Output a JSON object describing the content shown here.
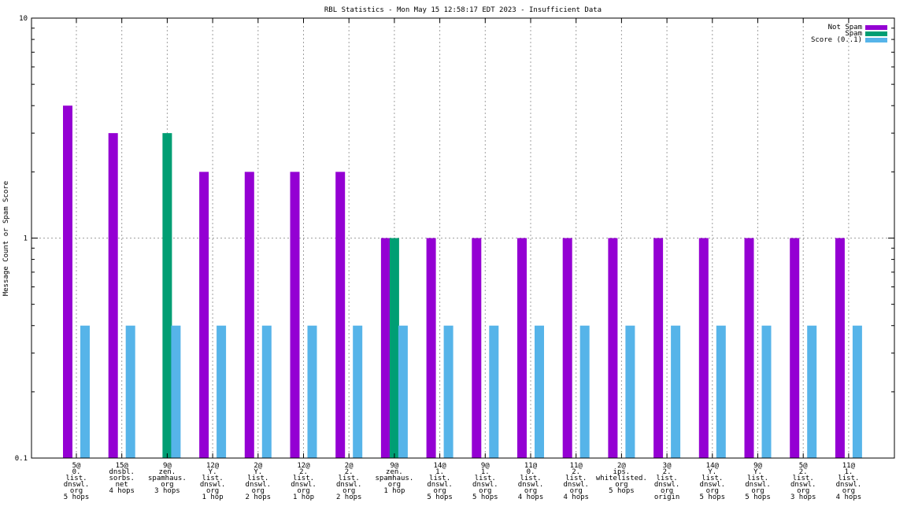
{
  "chart_data": {
    "type": "bar",
    "title": "RBL Statistics - Mon May 15 12:58:17 EDT 2023 - Insufficient Data",
    "xlabel": "",
    "ylabel": "Message Count or Spam Score",
    "yscale": "log",
    "ylim": [
      0.1,
      10
    ],
    "yticks": [
      {
        "value": 0.1,
        "label": "0.1"
      },
      {
        "value": 1,
        "label": "1"
      },
      {
        "value": 10,
        "label": "10"
      }
    ],
    "grid": true,
    "legend_position": "top-right",
    "categories": [
      [
        "5@",
        "0.",
        "list.",
        "dnswl.",
        "org",
        "5 hops"
      ],
      [
        "15@",
        "dnsbl.",
        "sorbs.",
        "net",
        "4 hops"
      ],
      [
        "9@",
        "zen.",
        "spamhaus.",
        "org",
        "3 hops"
      ],
      [
        "12@",
        "Y.",
        "list.",
        "dnswl.",
        "org",
        "1 hop"
      ],
      [
        "2@",
        "Y.",
        "list.",
        "dnswl.",
        "org",
        "2 hops"
      ],
      [
        "12@",
        "2.",
        "list.",
        "dnswl.",
        "org",
        "1 hop"
      ],
      [
        "2@",
        "2.",
        "list.",
        "dnswl.",
        "org",
        "2 hops"
      ],
      [
        "9@",
        "zen.",
        "spamhaus.",
        "org",
        "1 hop"
      ],
      [
        "14@",
        "1.",
        "list.",
        "dnswl.",
        "org",
        "5 hops"
      ],
      [
        "9@",
        "1.",
        "list.",
        "dnswl.",
        "org",
        "5 hops"
      ],
      [
        "11@",
        "0.",
        "list.",
        "dnswl.",
        "org",
        "4 hops"
      ],
      [
        "11@",
        "2.",
        "list.",
        "dnswl.",
        "org",
        "4 hops"
      ],
      [
        "2@",
        "ips.",
        "whitelisted.",
        "org",
        "5 hops"
      ],
      [
        "3@",
        "2.",
        "list.",
        "dnswl.",
        "org",
        "origin"
      ],
      [
        "14@",
        "Y.",
        "list.",
        "dnswl.",
        "org",
        "5 hops"
      ],
      [
        "9@",
        "Y.",
        "list.",
        "dnswl.",
        "org",
        "5 hops"
      ],
      [
        "5@",
        "2.",
        "list.",
        "dnswl.",
        "org",
        "3 hops"
      ],
      [
        "11@",
        "1.",
        "list.",
        "dnswl.",
        "org",
        "4 hops"
      ]
    ],
    "series": [
      {
        "name": "Not Spam",
        "color": "#9400d3",
        "values": [
          4,
          3,
          0,
          2,
          2,
          2,
          2,
          1,
          1,
          1,
          1,
          1,
          1,
          1,
          1,
          1,
          1,
          1
        ]
      },
      {
        "name": "Spam",
        "color": "#009e73",
        "values": [
          0,
          0,
          3,
          0,
          0,
          0,
          0,
          1,
          0,
          0,
          0,
          0,
          0,
          0,
          0,
          0,
          0,
          0
        ]
      },
      {
        "name": "Score (0..1)",
        "color": "#56b4e9",
        "values": [
          0.4,
          0.4,
          0.4,
          0.4,
          0.4,
          0.4,
          0.4,
          0.4,
          0.4,
          0.4,
          0.4,
          0.4,
          0.4,
          0.4,
          0.4,
          0.4,
          0.4,
          0.4
        ]
      }
    ]
  }
}
